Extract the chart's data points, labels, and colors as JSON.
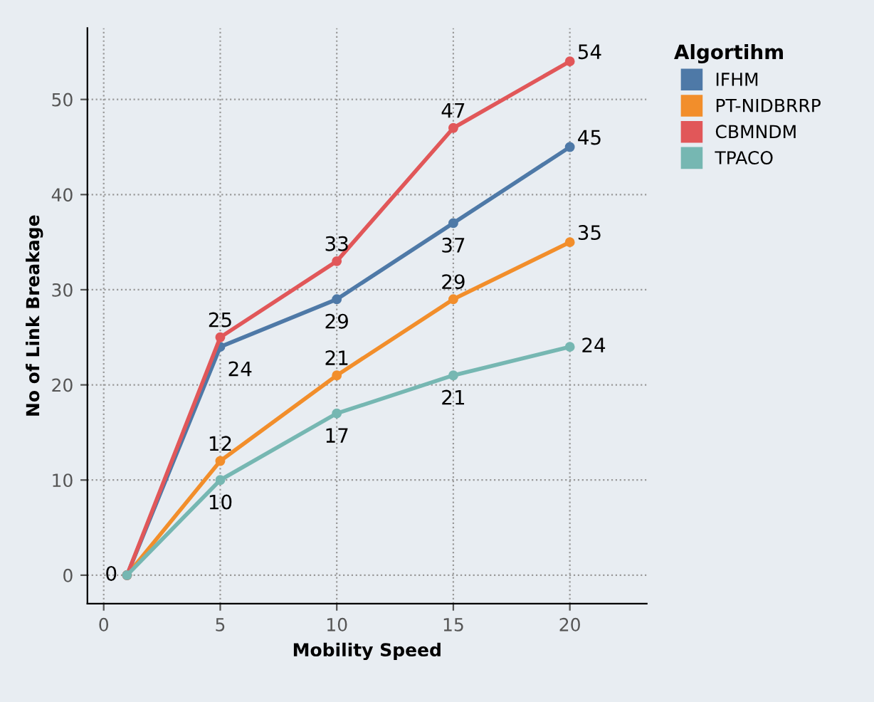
{
  "chart_data": {
    "type": "line",
    "xlabel": "Mobility Speed",
    "ylabel": "No of Link Breakage",
    "legend_title": "Algortihm",
    "legend": "top right",
    "x": [
      1,
      5,
      10,
      15,
      20
    ],
    "xlim": [
      -0.7,
      23.3
    ],
    "xticks": [
      0,
      5,
      10,
      15,
      20
    ],
    "ylim": [
      -3,
      57.5
    ],
    "yticks": [
      0,
      10,
      20,
      30,
      40,
      50
    ],
    "grid": true,
    "marker": "circle",
    "line_style": "solid",
    "series": [
      {
        "name": "IFHM",
        "color": "#4e79a7",
        "values": [
          0,
          24,
          29,
          37,
          45
        ],
        "value_labels": [
          null,
          "24",
          "29",
          "37",
          "45"
        ]
      },
      {
        "name": "PT-NIDBRRP",
        "color": "#f28e2b",
        "values": [
          0,
          12,
          21,
          29,
          35
        ],
        "value_labels": [
          null,
          "12",
          "21",
          "29",
          "35"
        ]
      },
      {
        "name": "CBMNDM",
        "color": "#e15759",
        "values": [
          0,
          25,
          33,
          47,
          54
        ],
        "value_labels": [
          "0",
          "25",
          "33",
          "47",
          "54"
        ]
      },
      {
        "name": "TPACO",
        "color": "#76b7b2",
        "values": [
          0,
          10,
          17,
          21,
          24
        ],
        "value_labels": [
          null,
          "10",
          "17",
          "21",
          "24"
        ]
      }
    ]
  }
}
